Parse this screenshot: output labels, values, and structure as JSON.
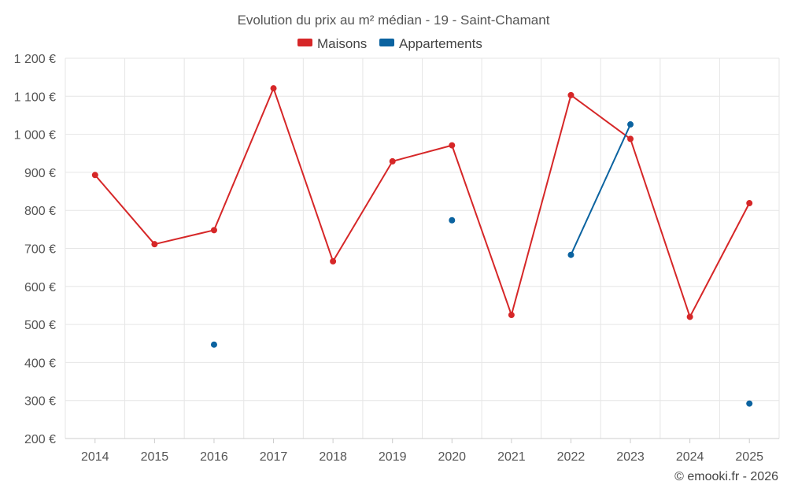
{
  "chart_data": {
    "type": "line",
    "title": "Evolution du prix au m² médian - 19 - Saint-Chamant",
    "categories": [
      "2014",
      "2015",
      "2016",
      "2017",
      "2018",
      "2019",
      "2020",
      "2021",
      "2022",
      "2023",
      "2024",
      "2025"
    ],
    "series": [
      {
        "name": "Maisons",
        "color": "#d62728",
        "values": [
          893,
          711,
          748,
          1121,
          666,
          929,
          971,
          525,
          1103,
          988,
          520,
          819
        ]
      },
      {
        "name": "Appartements",
        "color": "#0b63a0",
        "values": [
          null,
          null,
          447,
          null,
          null,
          null,
          774,
          null,
          683,
          1026,
          null,
          292
        ]
      }
    ],
    "ylim": [
      200,
      1200
    ],
    "yticks": [
      200,
      300,
      400,
      500,
      600,
      700,
      800,
      900,
      1000,
      1100,
      1200
    ],
    "ytick_labels": [
      "200 €",
      "300 €",
      "400 €",
      "500 €",
      "600 €",
      "700 €",
      "800 €",
      "900 €",
      "1 000 €",
      "1 100 €",
      "1 200 €"
    ],
    "xlabel": "",
    "ylabel": "",
    "legend_position": "top-center",
    "grid": true
  },
  "credit": "© emooki.fr - 2026"
}
